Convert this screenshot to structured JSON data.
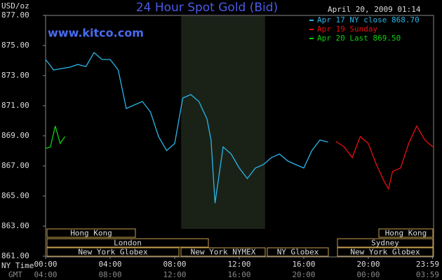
{
  "chart_data": {
    "type": "line",
    "title": "24 Hour Spot Gold (Bid)",
    "y_label": "USD/oz",
    "date": "April 20, 2009 01:14",
    "watermark": "www.kitco.com",
    "x_row_labels": [
      "NY Time",
      "GMT"
    ],
    "xlim": [
      0,
      24
    ],
    "xticks": [
      {
        "value": 0,
        "label": "00:00"
      },
      {
        "value": 4,
        "label": "04:00"
      },
      {
        "value": 8,
        "label": "08:00"
      },
      {
        "value": 12,
        "label": "12:00"
      },
      {
        "value": 16,
        "label": "16:00"
      },
      {
        "value": 20,
        "label": "20:00"
      },
      {
        "value": 23.98,
        "label": "23:59"
      }
    ],
    "gmt_tick_labels": [
      "04:00",
      "08:00",
      "12:00",
      "16:00",
      "20:00",
      "00:00",
      "03:59"
    ],
    "ylim": [
      861,
      877
    ],
    "yticks": [
      {
        "value": 861,
        "label": "861.00"
      },
      {
        "value": 863,
        "label": "863.00"
      },
      {
        "value": 865,
        "label": "865.00"
      },
      {
        "value": 867,
        "label": "867.00"
      },
      {
        "value": 869,
        "label": "869.00"
      },
      {
        "value": 871,
        "label": "871.00"
      },
      {
        "value": 873,
        "label": "873.00"
      },
      {
        "value": 875,
        "label": "875.00"
      },
      {
        "value": 877,
        "label": "877.00"
      }
    ],
    "grid": false,
    "sessions": [
      "Hong Kong",
      "London",
      "New York Globex",
      "New York NYMEX",
      "NY Globex",
      "Hong Kong",
      "Sydney",
      "New York Globex"
    ],
    "series": [
      {
        "name": "Apr 17 NY close 868.70",
        "color": "#29b6e8",
        "x": [
          0,
          0.5,
          1,
          1.5,
          2,
          2.5,
          3,
          3.5,
          4,
          4.5,
          5,
          5.5,
          6,
          6.5,
          7,
          7.5,
          8,
          8.5,
          9,
          9.5,
          10,
          10.25,
          10.5,
          11,
          11.5,
          12,
          12.5,
          13,
          13.5,
          14,
          14.5,
          15,
          15.5,
          16,
          16.5,
          17,
          17.5
        ],
        "values": [
          874.07,
          873.37,
          873.47,
          873.56,
          873.74,
          873.6,
          874.53,
          874.07,
          874.07,
          873.37,
          870.81,
          871.05,
          871.28,
          870.58,
          868.95,
          868.02,
          868.49,
          871.51,
          871.74,
          871.28,
          870.12,
          868.72,
          864.53,
          868.26,
          867.79,
          866.86,
          866.16,
          866.86,
          867.09,
          867.56,
          867.79,
          867.33,
          867.09,
          866.86,
          868.02,
          868.72,
          868.58
        ]
      },
      {
        "name": "Apr 19 Sunday",
        "color": "#e81010",
        "x": [
          18,
          18.5,
          19,
          19.5,
          20,
          20.5,
          21,
          21.25,
          21.5,
          22,
          22.5,
          23,
          23.5,
          24
        ],
        "values": [
          868.63,
          868.26,
          867.56,
          868.95,
          868.49,
          867.09,
          865.93,
          865.47,
          866.63,
          866.86,
          868.49,
          869.65,
          868.72,
          868.26
        ]
      },
      {
        "name": "Apr 20 Last 869.50",
        "color": "#10d010",
        "x": [
          0,
          0.3,
          0.6,
          0.9,
          1.2
        ],
        "values": [
          868.16,
          868.26,
          869.65,
          868.49,
          868.95
        ]
      }
    ]
  }
}
